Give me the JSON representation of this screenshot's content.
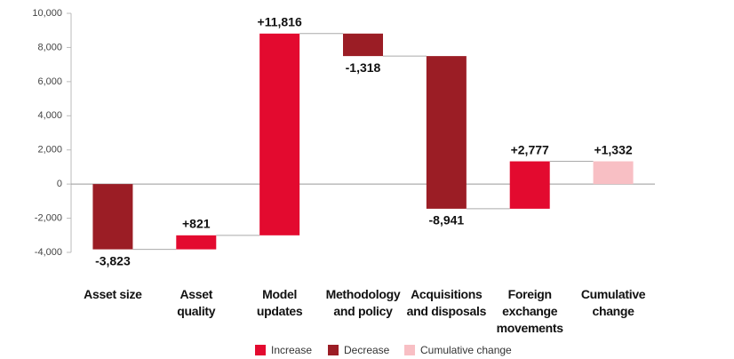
{
  "chart_data": {
    "type": "waterfall",
    "categories": [
      "Asset size",
      "Asset\nquality",
      "Model\nupdates",
      "Methodology\nand policy",
      "Acquisitions\nand disposals",
      "Foreign\nexchange\nmovements",
      "Cumulative\nchange"
    ],
    "values": [
      -3823,
      821,
      11816,
      -1318,
      -8941,
      2777,
      1332
    ],
    "value_labels": [
      "-3,823",
      "+821",
      "+11,816",
      "-1,318",
      "-8,941",
      "+2,777",
      "+1,332"
    ],
    "kinds": [
      1,
      0,
      0,
      1,
      1,
      0,
      2
    ],
    "legend": [
      {
        "name": "Increase",
        "color": "#e30a2f"
      },
      {
        "name": "Decrease",
        "color": "#9b1d25"
      },
      {
        "name": "Cumulative change",
        "color": "#f8bfc4"
      }
    ],
    "ylim": [
      -4000,
      10000
    ],
    "yticks": [
      {
        "value": -4000,
        "label": "-4,000"
      },
      {
        "value": -2000,
        "label": "-2,000"
      },
      0,
      {
        "value": 2000,
        "label": "2,000"
      },
      {
        "value": 4000,
        "label": "4,000"
      },
      {
        "value": 6000,
        "label": "6,000"
      },
      {
        "value": 8000,
        "label": "8,000"
      },
      {
        "value": 10000,
        "label": "10,000"
      }
    ]
  }
}
